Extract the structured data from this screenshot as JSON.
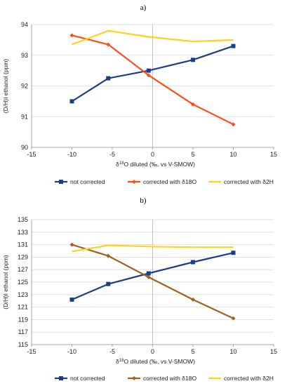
{
  "chart_data": [
    {
      "type": "line",
      "title": "a)",
      "xlabel_prefix": "δ",
      "xlabel_sup": "18",
      "xlabel_rest": "O diluted (‰, vs V-SMOW)",
      "ylabel": "(D/H)I ethanol (ppm)",
      "xlim": [
        -15,
        15
      ],
      "ylim": [
        90,
        94
      ],
      "xticks": [
        -15,
        -10,
        -5,
        0,
        5,
        10,
        15
      ],
      "yticks": [
        90,
        91,
        92,
        93,
        94
      ],
      "grid": true,
      "legend_position": "bottom",
      "series": [
        {
          "name": "not corrected",
          "color": "#1f3c88",
          "marker": "square",
          "x": [
            -10,
            -5.5,
            -0.5,
            5,
            10
          ],
          "y": [
            91.5,
            92.25,
            92.5,
            92.85,
            93.3
          ]
        },
        {
          "name": "corrected with  δ18O",
          "color": "#ff4d1a",
          "marker": "diamond",
          "x": [
            -10,
            -5.5,
            -0.5,
            5,
            10
          ],
          "y": [
            93.65,
            93.35,
            92.35,
            91.4,
            90.75
          ]
        },
        {
          "name": "corrected with  δ2H",
          "color": "#ffd21f",
          "marker": "none",
          "x": [
            -10,
            -5.5,
            -0.5,
            5,
            10
          ],
          "y": [
            93.35,
            93.8,
            93.6,
            93.45,
            93.5
          ]
        }
      ]
    },
    {
      "type": "line",
      "title": "b)",
      "xlabel_prefix": "δ",
      "xlabel_sup": "18",
      "xlabel_rest": "O diluted (‰, vs V-SMOW)",
      "ylabel": "(D/H)I ethanol (ppm)",
      "xlim": [
        -15,
        15
      ],
      "ylim": [
        115,
        135
      ],
      "xticks": [
        -15,
        -10,
        -5,
        0,
        5,
        10,
        15
      ],
      "yticks": [
        115,
        117,
        119,
        121,
        123,
        125,
        127,
        129,
        131,
        133,
        135
      ],
      "grid": true,
      "legend_position": "bottom",
      "series": [
        {
          "name": "not corrected",
          "color": "#1f3c88",
          "marker": "square",
          "x": [
            -10,
            -5.5,
            -0.5,
            5,
            10
          ],
          "y": [
            122.2,
            124.7,
            126.4,
            128.2,
            129.7
          ]
        },
        {
          "name": "corrected with  δ18O",
          "color": "#a0621f",
          "marker": "diamond",
          "x": [
            -10,
            -5.5,
            -0.5,
            5,
            10
          ],
          "y": [
            131.0,
            129.2,
            125.8,
            122.2,
            119.2
          ]
        },
        {
          "name": "corrected with  δ2H",
          "color": "#ffd21f",
          "marker": "none",
          "x": [
            -10,
            -5.5,
            -0.5,
            5,
            10
          ],
          "y": [
            129.9,
            130.9,
            130.7,
            130.6,
            130.6
          ]
        }
      ]
    }
  ]
}
